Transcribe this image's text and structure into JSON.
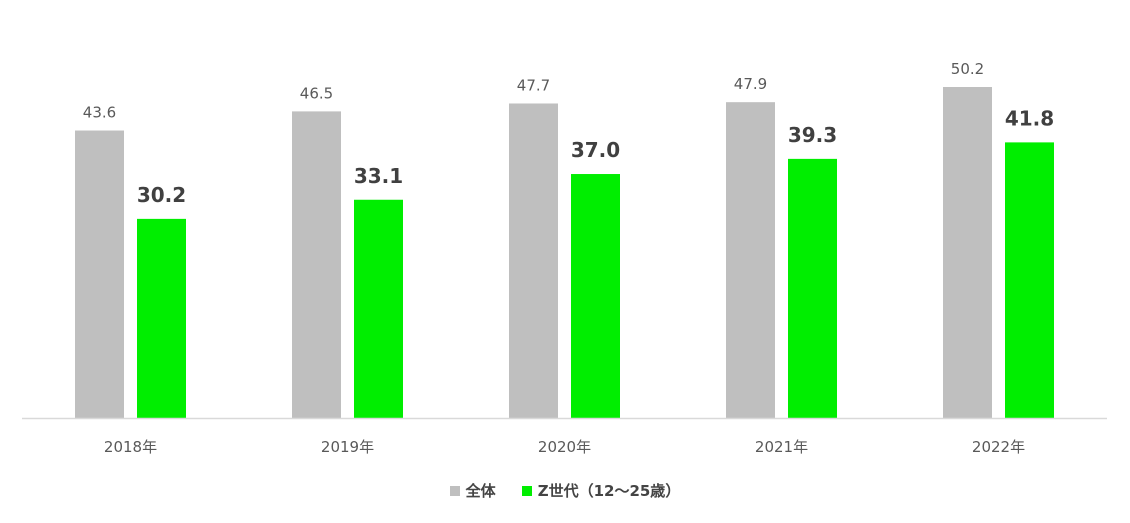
{
  "chart_data": {
    "type": "bar",
    "categories": [
      "2018年",
      "2019年",
      "2020年",
      "2021年",
      "2022年"
    ],
    "series": [
      {
        "name": "全体",
        "values": [
          43.6,
          46.5,
          47.7,
          47.9,
          50.2
        ],
        "color": "#bfbfbf",
        "labels": [
          "43.6",
          "46.5",
          "47.7",
          "47.9",
          "50.2"
        ]
      },
      {
        "name": "Z世代（12〜25歳）",
        "values": [
          30.2,
          33.1,
          37.0,
          39.3,
          41.8
        ],
        "color": "#00ee00",
        "labels": [
          "30.2",
          "33.1",
          "37.0",
          "39.3",
          "41.8"
        ]
      }
    ],
    "title": "",
    "xlabel": "",
    "ylabel": "",
    "ylim": [
      0,
      50.2
    ],
    "grid": false,
    "legend_position": "bottom",
    "axis_color": "#d9d9d9"
  }
}
